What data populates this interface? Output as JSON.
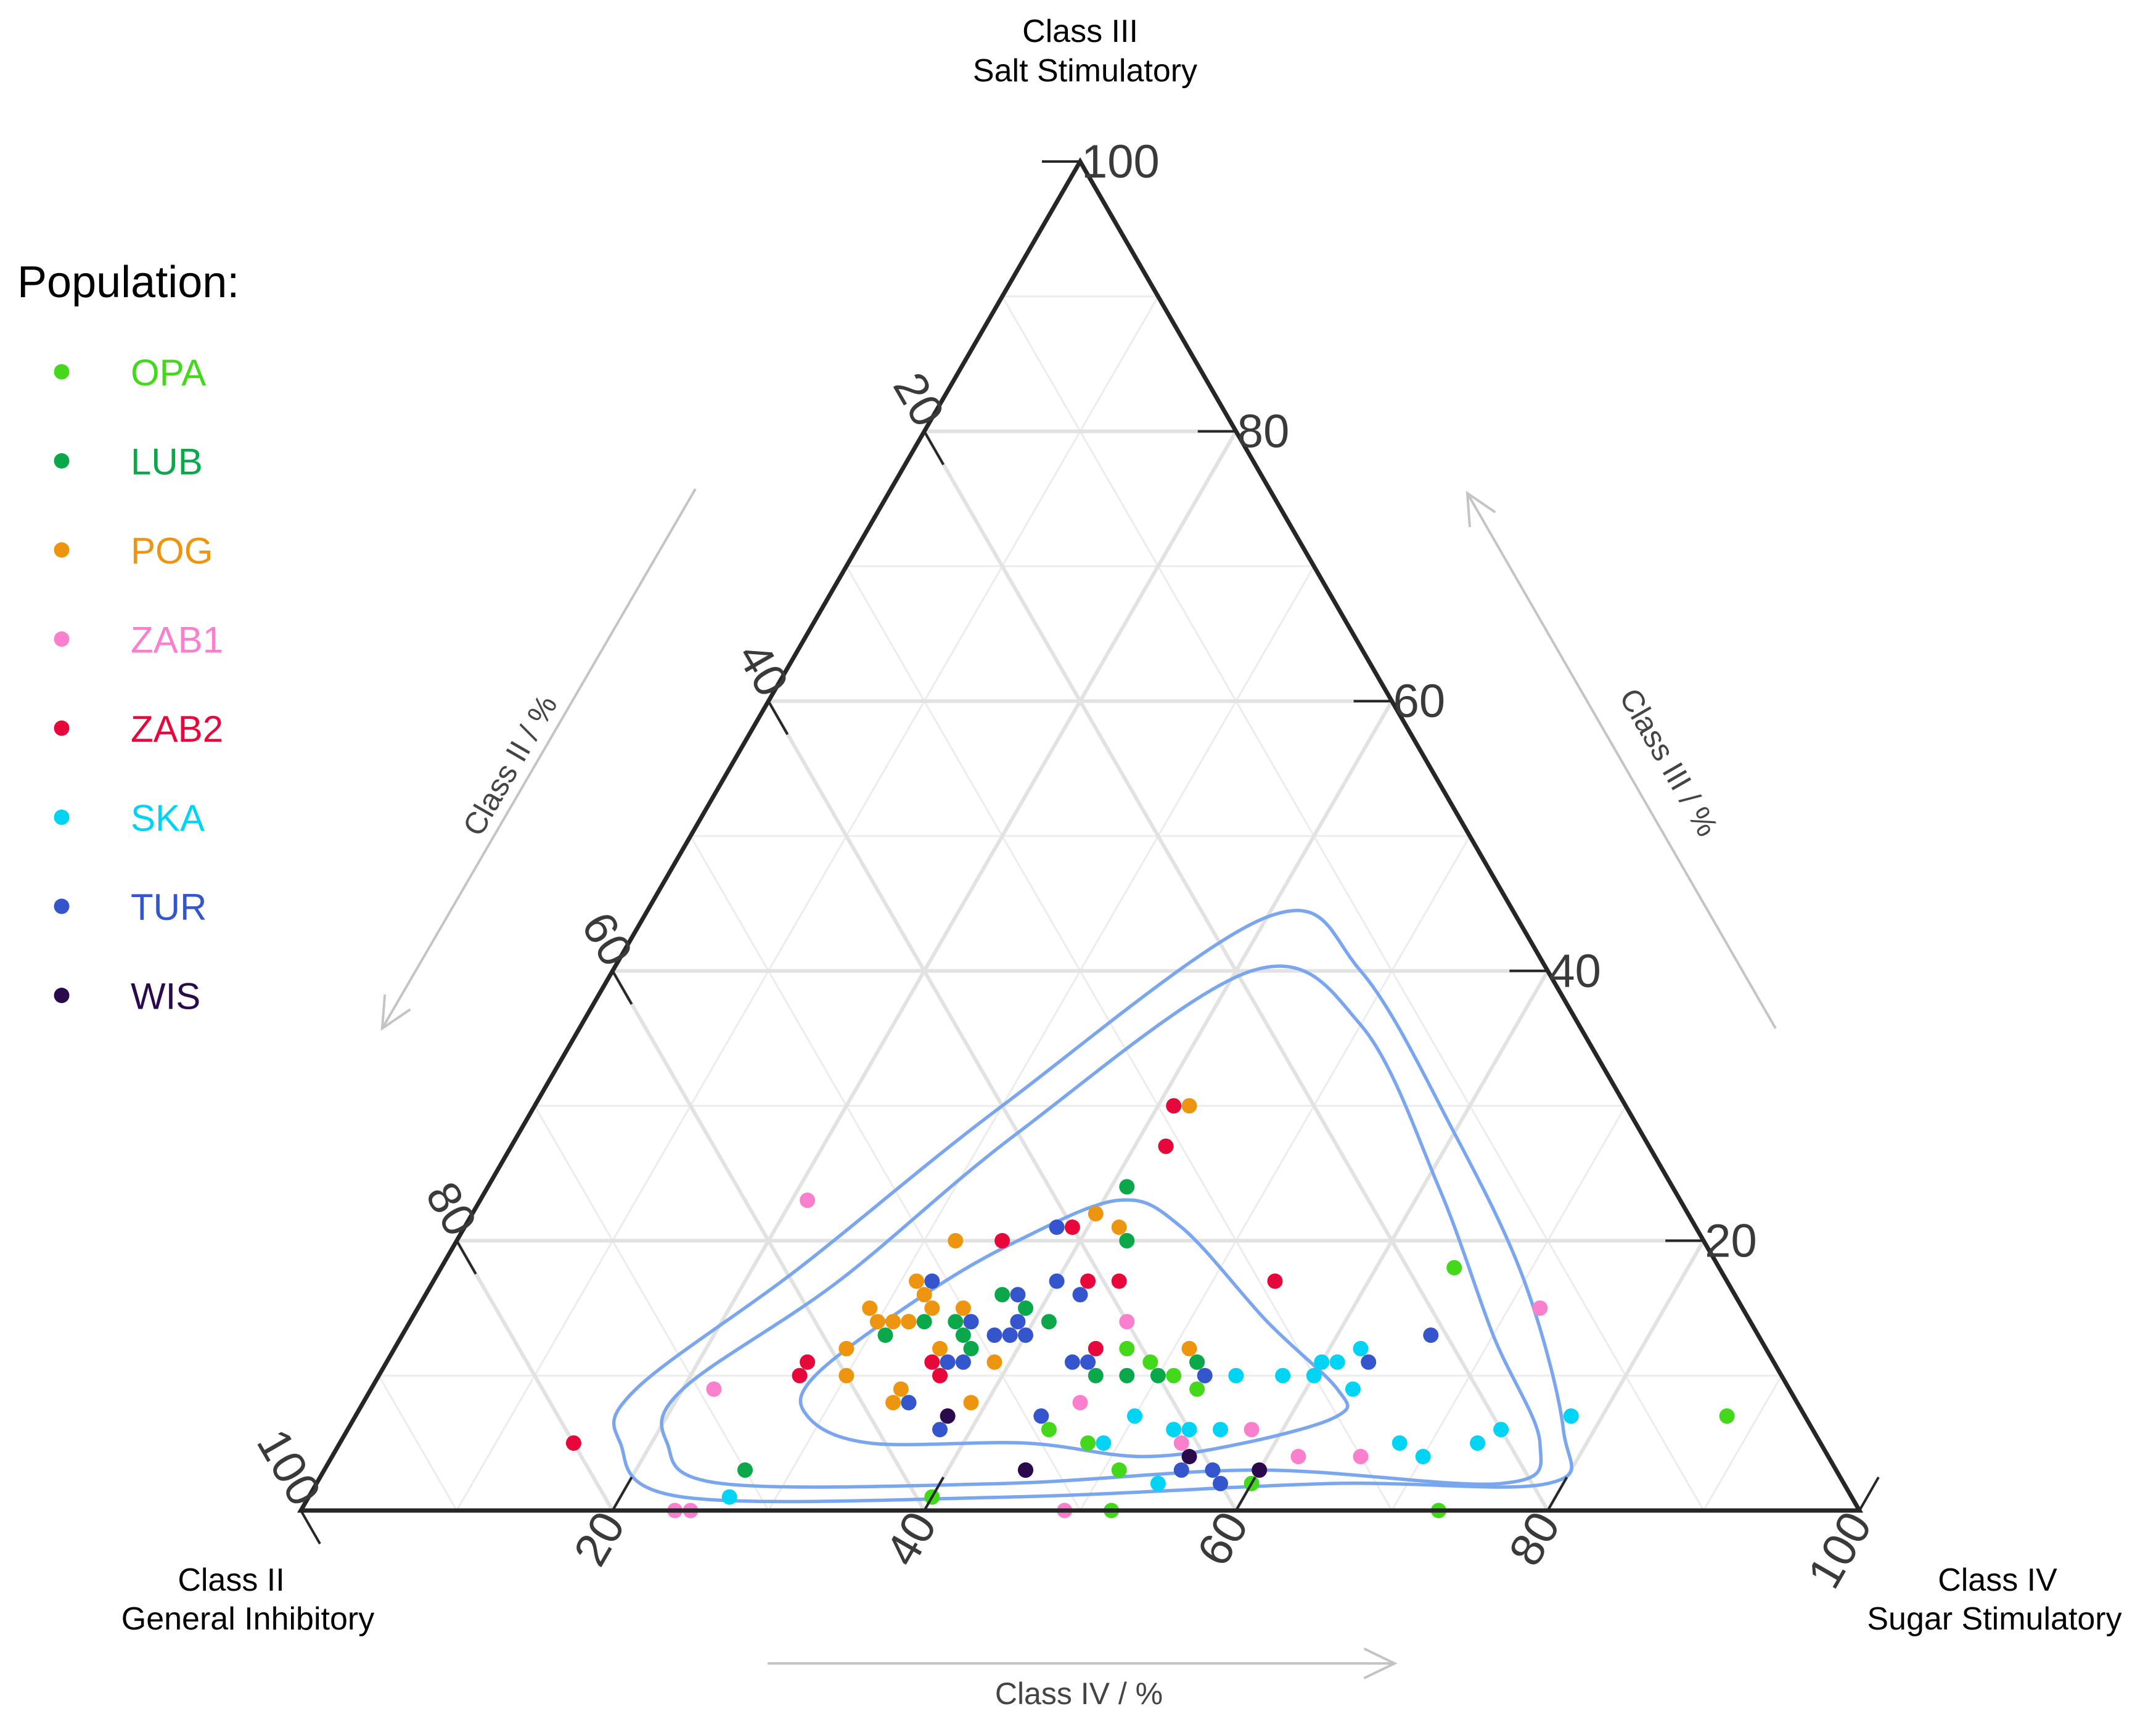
{
  "chart_data": {
    "type": "scatter",
    "subtype": "ternary",
    "vertices": {
      "top": {
        "line1": "Class III",
        "line2": "Salt Stimulatory"
      },
      "left": {
        "line1": "Class II",
        "line2": "General Inhibitory"
      },
      "right": {
        "line1": "Class IV",
        "line2": "Sugar Stimulatory"
      }
    },
    "axis_titles": {
      "left": "Class II / %",
      "right": "Class III / %",
      "bottom": "Class IV / %"
    },
    "ticks": {
      "top": [
        "100",
        "80",
        "60",
        "40",
        "20"
      ],
      "left": [
        "20",
        "40",
        "60",
        "80",
        "100"
      ],
      "bottom": [
        "20",
        "40",
        "60",
        "80",
        "100"
      ]
    },
    "legend_title": "Population:",
    "contour_color": "#7aa6f0",
    "series": [
      {
        "name": "OPA",
        "color": "#44d81a",
        "points": [
          [
            65,
            18,
            17
          ],
          [
            88,
            7,
            5
          ],
          [
            73,
            0,
            27
          ],
          [
            47,
            12,
            41
          ],
          [
            49,
            11,
            40
          ],
          [
            51,
            10,
            39
          ],
          [
            52,
            11,
            37
          ],
          [
            53,
            9,
            38
          ],
          [
            45,
            6,
            49
          ],
          [
            48,
            5,
            47
          ],
          [
            51,
            3,
            46
          ],
          [
            60,
            2,
            38
          ],
          [
            52,
            0,
            48
          ],
          [
            35,
            8,
            57
          ],
          [
            40,
            1,
            59
          ]
        ]
      },
      {
        "name": "LUB",
        "color": "#0aa84a",
        "points": [
          [
            41,
            24,
            35
          ],
          [
            43,
            20,
            37
          ],
          [
            37,
            16,
            47
          ],
          [
            32,
            14,
            54
          ],
          [
            33,
            14,
            53
          ],
          [
            35,
            14,
            51
          ],
          [
            36,
            13,
            51
          ],
          [
            39,
            15,
            46
          ],
          [
            41,
            14,
            45
          ],
          [
            31,
            13,
            56
          ],
          [
            46,
            10,
            44
          ],
          [
            48,
            10,
            42
          ],
          [
            50,
            10,
            40
          ],
          [
            52,
            11,
            37
          ],
          [
            35,
            8,
            57
          ],
          [
            37,
            12,
            51
          ],
          [
            45,
            3,
            52
          ],
          [
            27,
            3,
            70
          ]
        ]
      },
      {
        "name": "POG",
        "color": "#ee9510",
        "points": [
          [
            42,
            30,
            28
          ],
          [
            42,
            27,
            31
          ],
          [
            40,
            22,
            38
          ],
          [
            42,
            21,
            37
          ],
          [
            32,
            20,
            48
          ],
          [
            31,
            17,
            52
          ],
          [
            29,
            15,
            56
          ],
          [
            32,
            16,
            52
          ],
          [
            33,
            15,
            52
          ],
          [
            35,
            15,
            50
          ],
          [
            30,
            14,
            56
          ],
          [
            29,
            12,
            59
          ],
          [
            31,
            14,
            55
          ],
          [
            32,
            14,
            54
          ],
          [
            36,
            11,
            53
          ],
          [
            30,
            10,
            60
          ],
          [
            35,
            12,
            53
          ],
          [
            36,
            11,
            53
          ],
          [
            36,
            10,
            54
          ],
          [
            34,
            9,
            57
          ],
          [
            34,
            8,
            58
          ],
          [
            39,
            11,
            50
          ],
          [
            39,
            8,
            53
          ],
          [
            51,
            12,
            37
          ]
        ]
      },
      {
        "name": "ZAB1",
        "color": "#fa7fcc",
        "points": [
          [
            21,
            23,
            56
          ],
          [
            72,
            15,
            13
          ],
          [
            46,
            14,
            40
          ],
          [
            22,
            9,
            69
          ],
          [
            46,
            8,
            46
          ],
          [
            58,
            6,
            36
          ],
          [
            62,
            4,
            34
          ],
          [
            66,
            4,
            30
          ],
          [
            54,
            5,
            41
          ],
          [
            25,
            0,
            75
          ],
          [
            24,
            0,
            76
          ],
          [
            49,
            0,
            51
          ]
        ]
      },
      {
        "name": "ZAB2",
        "color": "#e8073a",
        "points": [
          [
            41,
            30,
            29
          ],
          [
            42,
            27,
            31
          ],
          [
            39,
            21,
            40
          ],
          [
            35,
            20,
            45
          ],
          [
            54,
            17,
            29
          ],
          [
            42,
            17,
            41
          ],
          [
            36,
            14,
            50
          ],
          [
            39,
            13,
            48
          ],
          [
            45,
            12,
            43
          ],
          [
            35,
            11,
            54
          ],
          [
            27,
            11,
            62
          ],
          [
            27,
            10,
            63
          ],
          [
            36,
            10,
            54
          ],
          [
            15,
            5,
            80
          ],
          [
            44,
            17,
            39
          ]
        ]
      },
      {
        "name": "SKA",
        "color": "#00d4f4",
        "points": [
          [
            62,
            12,
            26
          ],
          [
            61,
            11,
            28
          ],
          [
            60,
            11,
            29
          ],
          [
            63,
            9,
            28
          ],
          [
            58,
            10,
            32
          ],
          [
            60,
            10,
            30
          ],
          [
            55,
            10,
            35
          ],
          [
            50,
            7,
            43
          ],
          [
            54,
            6,
            40
          ],
          [
            56,
            6,
            38
          ],
          [
            53,
            6,
            41
          ],
          [
            49,
            5,
            46
          ],
          [
            78,
            7,
            15
          ],
          [
            73,
            5,
            22
          ],
          [
            74,
            6,
            20
          ],
          [
            68,
            5,
            27
          ],
          [
            70,
            4,
            26
          ],
          [
            54,
            2,
            44
          ],
          [
            27,
            1,
            72
          ]
        ]
      },
      {
        "name": "TUR",
        "color": "#3555cc",
        "points": [
          [
            32,
            17,
            51
          ],
          [
            38,
            21,
            41
          ],
          [
            42,
            16,
            42
          ],
          [
            38,
            16,
            46
          ],
          [
            40,
            17,
            43
          ],
          [
            36,
            14,
            50
          ],
          [
            38,
            13,
            49
          ],
          [
            39,
            14,
            47
          ],
          [
            39,
            13,
            48
          ],
          [
            40,
            13,
            47
          ],
          [
            37,
            11,
            52
          ],
          [
            36,
            11,
            53
          ],
          [
            44,
            11,
            45
          ],
          [
            45,
            11,
            44
          ],
          [
            35,
            8,
            57
          ],
          [
            44,
            7,
            49
          ],
          [
            38,
            6,
            56
          ],
          [
            53,
            10,
            37
          ],
          [
            63,
            11,
            26
          ],
          [
            66,
            13,
            21
          ],
          [
            57,
            3,
            40
          ],
          [
            58,
            2,
            40
          ],
          [
            55,
            3,
            42
          ]
        ]
      },
      {
        "name": "WIS",
        "color": "#2a0a4c",
        "points": [
          [
            38,
            7,
            55
          ],
          [
            55,
            4,
            41
          ],
          [
            45,
            3,
            52
          ],
          [
            60,
            3,
            37
          ]
        ]
      }
    ]
  }
}
